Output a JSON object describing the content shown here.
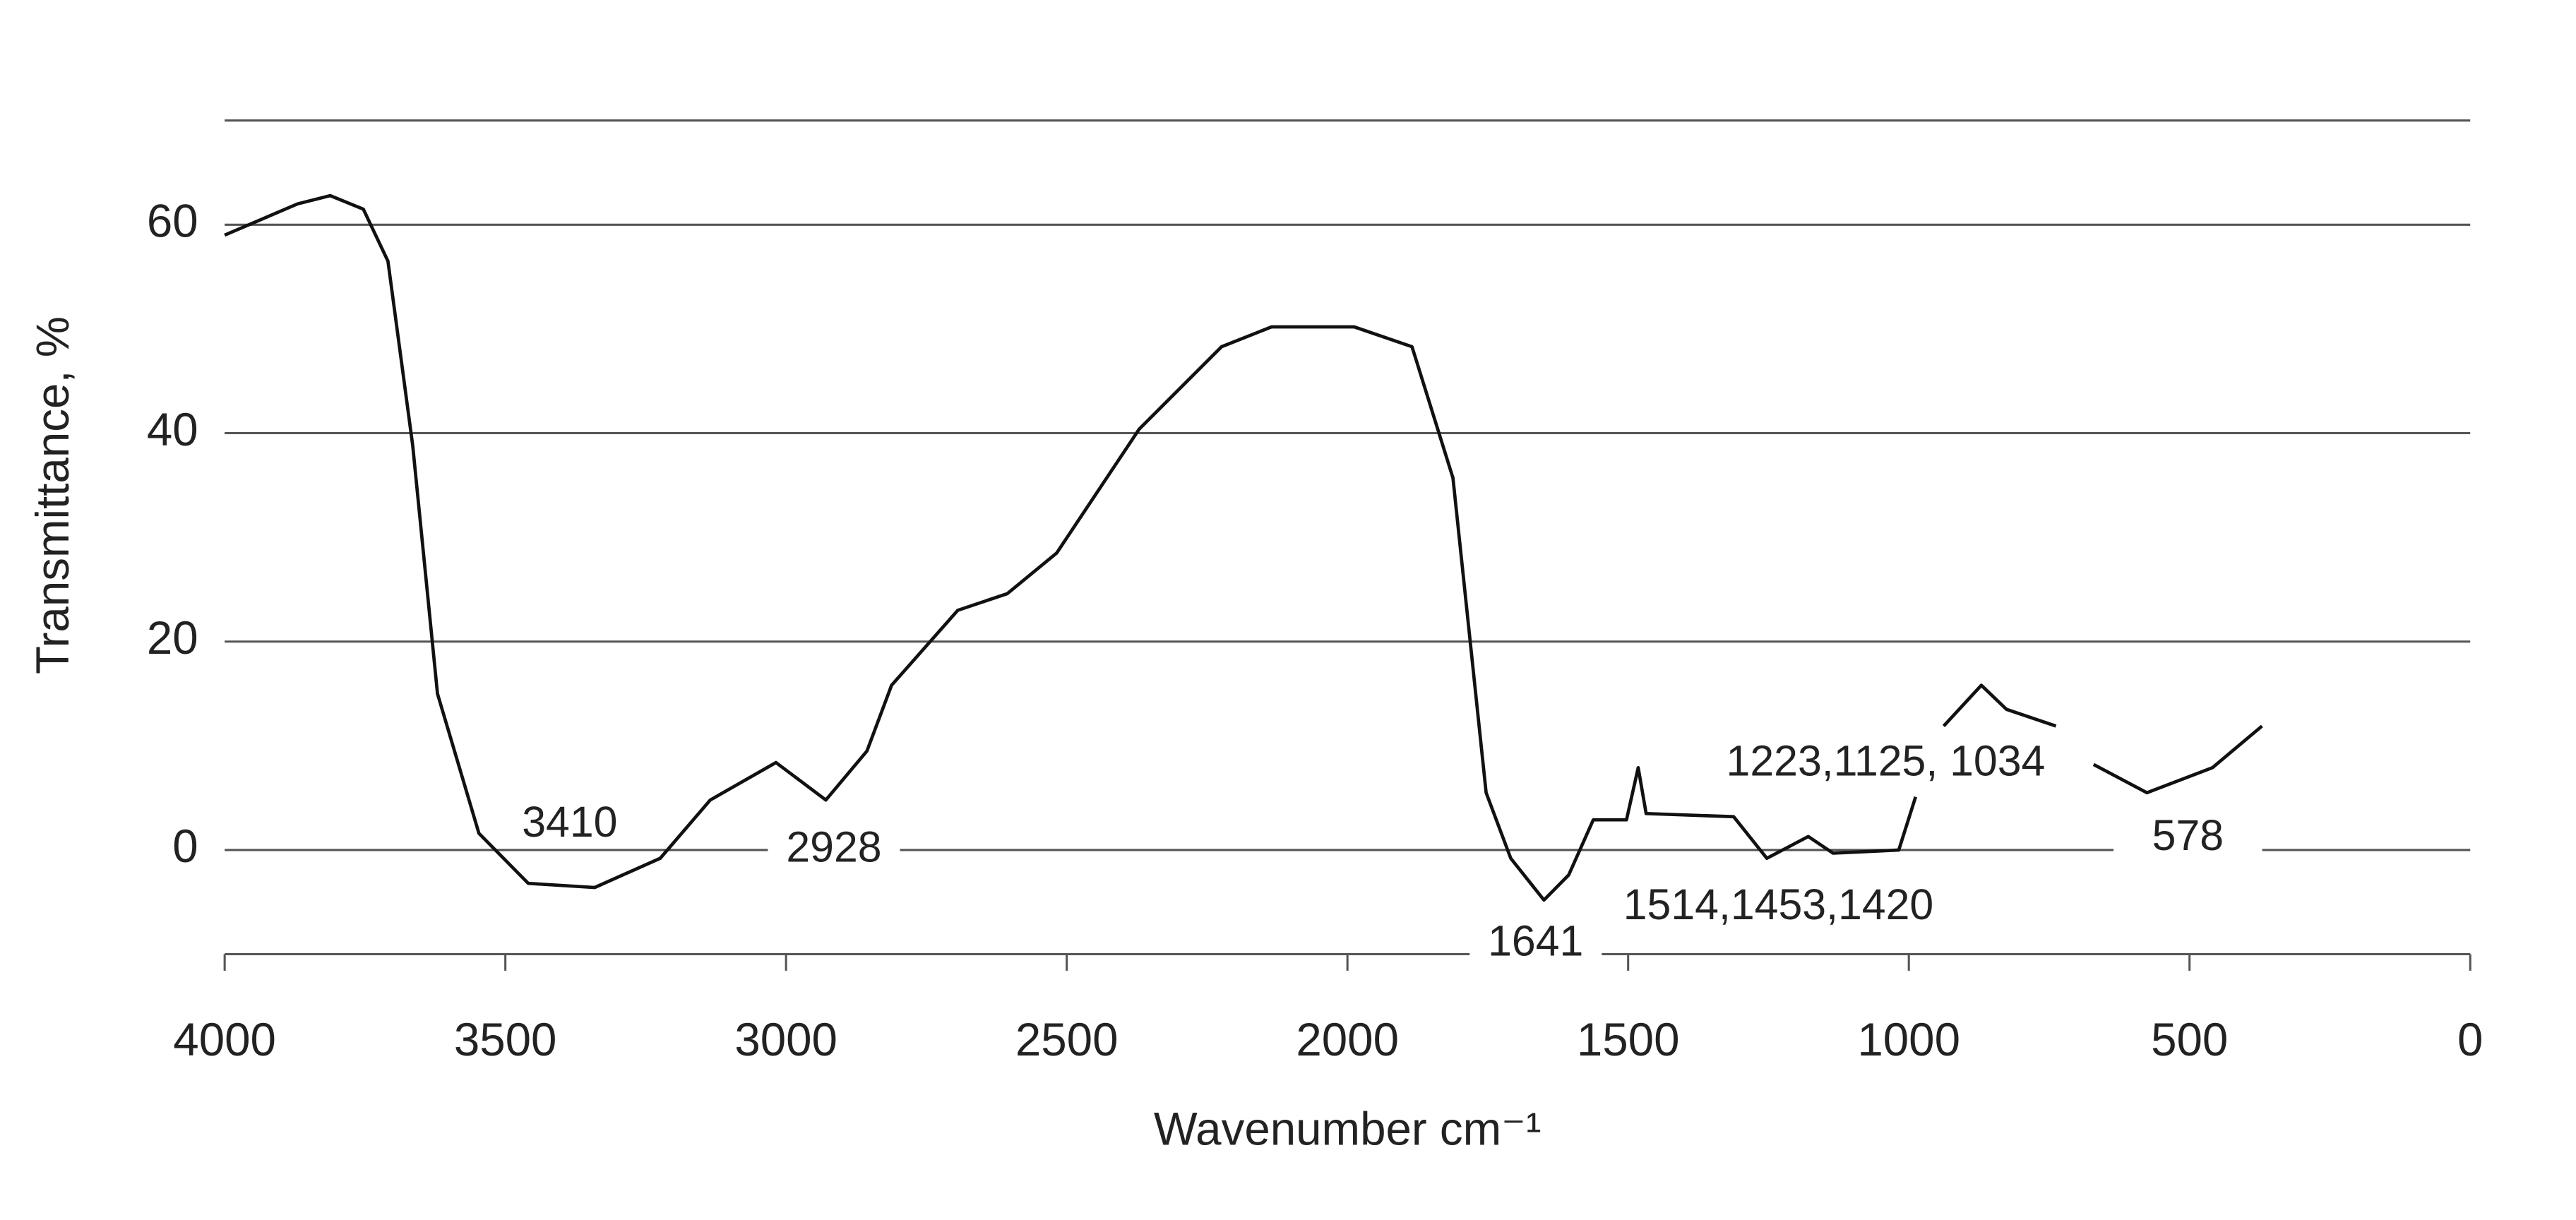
{
  "chart_data": {
    "type": "line",
    "xlabel": "Wavenumber cm⁻¹",
    "ylabel": "Transmittance, %",
    "xlim": [
      4000,
      0
    ],
    "xticks": [
      4000,
      3500,
      3000,
      2500,
      2000,
      1500,
      1000,
      500,
      0
    ],
    "ylim": [
      -10,
      70
    ],
    "yticks": [
      0,
      20,
      40,
      60
    ],
    "grid": true,
    "x": [
      4000,
      3870,
      3812,
      3753,
      3709,
      3665,
      3621,
      3547,
      3459,
      3341,
      3224,
      3135,
      3018,
      2929,
      2856,
      2812,
      2694,
      2606,
      2518,
      2371,
      2224,
      2135,
      1988,
      1885,
      1812,
      1753,
      1709,
      1650,
      1606,
      1562,
      1503,
      1482,
      1468,
      1312,
      1253,
      1179,
      1135,
      1018,
      988,
      960,
      938,
      871,
      826,
      738,
      700,
      671,
      576,
      459,
      371
    ],
    "series": [
      {
        "color": "#111111",
        "values": [
          59,
          62,
          62.8,
          61.5,
          56.5,
          38.8,
          15,
          1.6,
          -3.2,
          -3.6,
          -0.8,
          4.8,
          8.4,
          4.8,
          9.5,
          15.8,
          23,
          24.6,
          28.5,
          40.4,
          48.3,
          50.2,
          50.2,
          48.3,
          35.7,
          5.5,
          -0.8,
          -4.8,
          -2.4,
          2.9,
          2.9,
          7.9,
          3.5,
          3.2,
          -0.8,
          1.3,
          -0.3,
          0,
          5.1,
          null,
          11.9,
          15.8,
          13.5,
          11.9,
          null,
          8.2,
          5.5,
          7.9,
          11.9
        ]
      }
    ],
    "annotations": [
      "3410",
      "2928",
      "1641",
      "1514,1453,1420",
      "1223,1125, 1034",
      "578"
    ]
  }
}
